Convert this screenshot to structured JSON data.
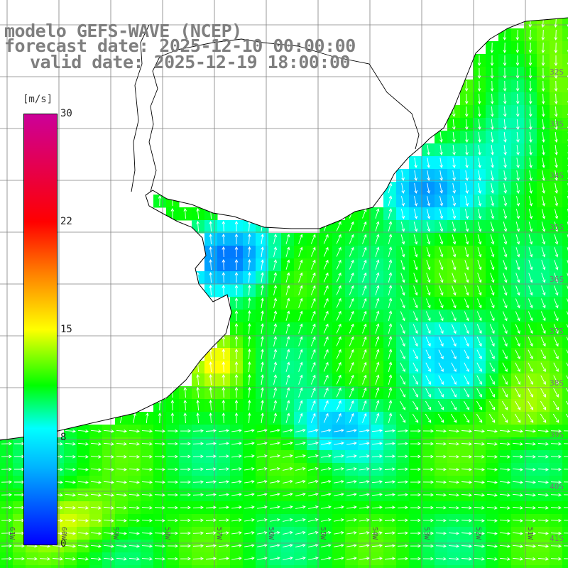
{
  "title": {
    "line1": "modelo GEFS-WAVE (NCEP)",
    "line2": "forecast date: 2025-12-10 00:00:00",
    "line3": "valid date: 2025-12-19 18:00:00"
  },
  "colorbar": {
    "units": "[m/s]",
    "ticks": [
      "30",
      "22",
      "15",
      "8",
      "0"
    ],
    "tick_values": [
      30,
      22,
      15,
      8,
      0
    ],
    "colors": [
      "#0000ff",
      "#00b4ff",
      "#00ffff",
      "#00ff00",
      "#ffff00",
      "#ff8000",
      "#ff0000",
      "#cc0099"
    ]
  },
  "axes": {
    "lat_labels": [
      "32S",
      "33S",
      "34S",
      "35S",
      "36S",
      "37S",
      "38S",
      "39S",
      "40S",
      "41S"
    ],
    "lon_labels": [
      "61W",
      "60W",
      "59W",
      "58W",
      "57W",
      "56W",
      "55W",
      "54W",
      "53W",
      "52W",
      "51W"
    ]
  },
  "field": {
    "variable": "wind speed",
    "land_color": "#ffffff",
    "coast_color": "#000000",
    "grid_color": "#808080"
  }
}
